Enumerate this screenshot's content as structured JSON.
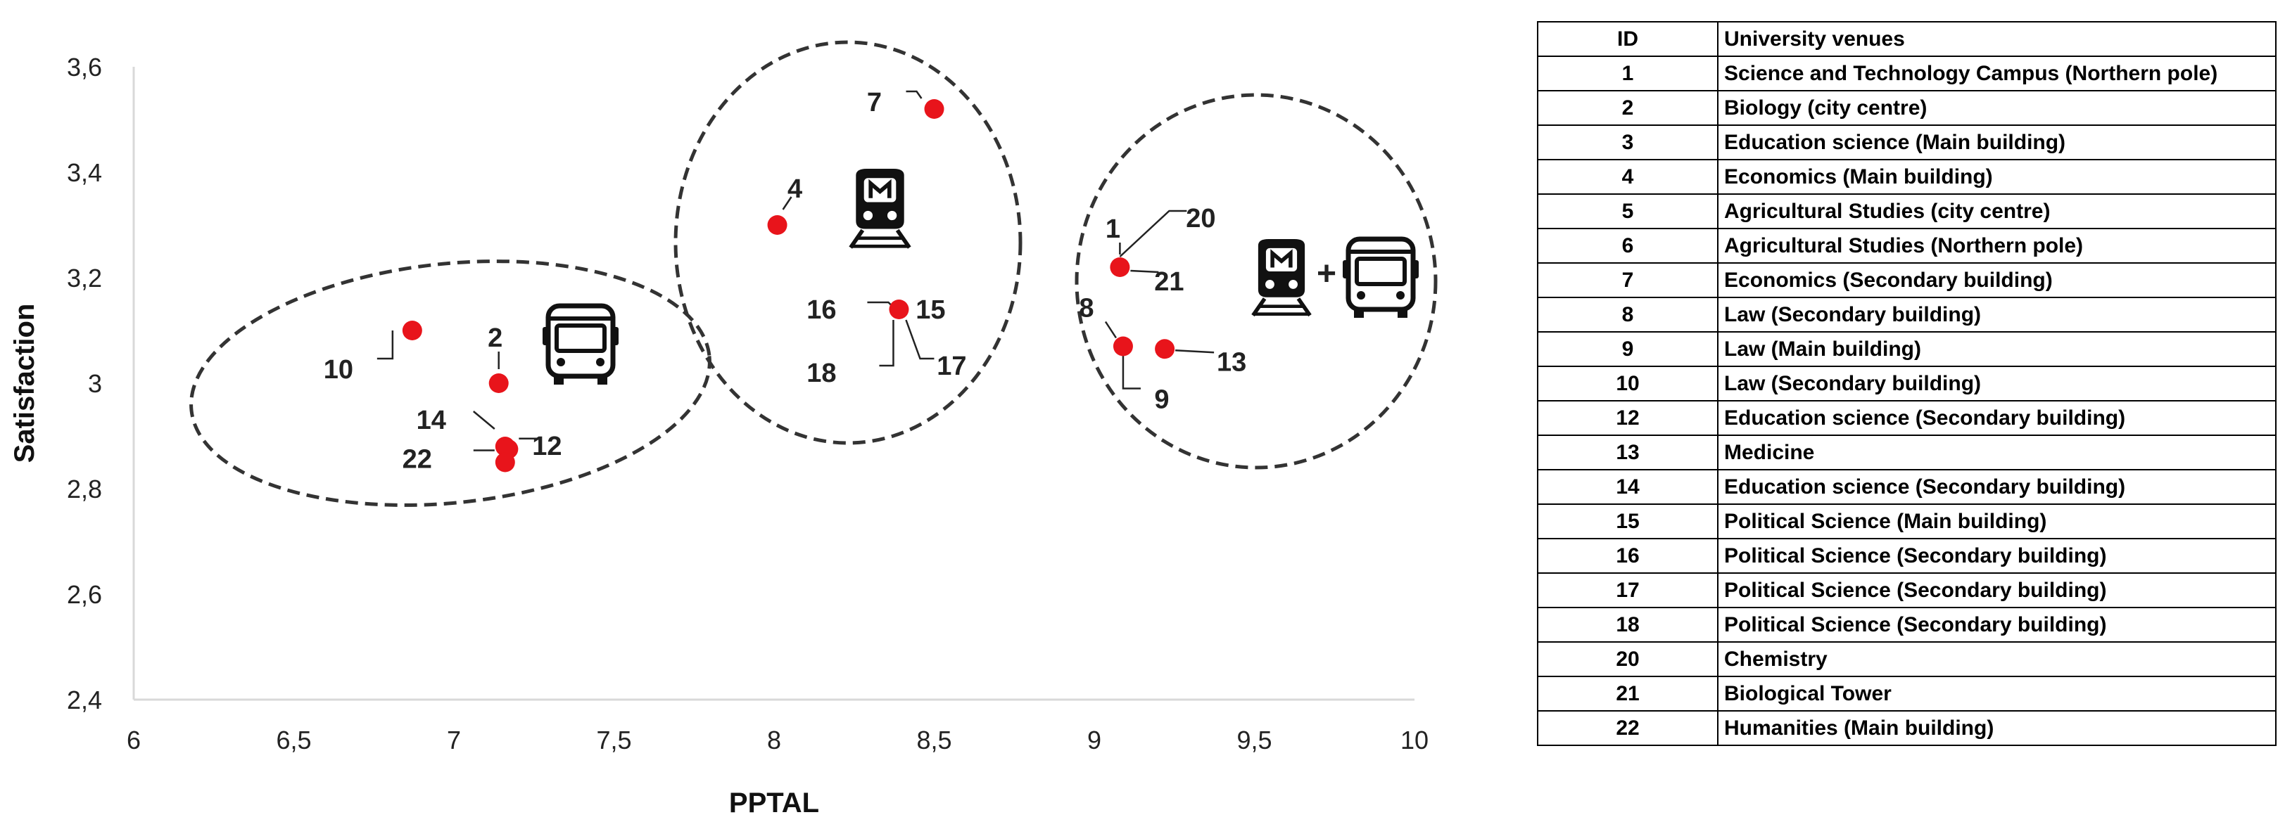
{
  "chart_data": {
    "type": "scatter",
    "xlabel": "PPTAL",
    "ylabel": "Satisfaction",
    "xlim": [
      6,
      10
    ],
    "ylim": [
      2.4,
      3.6
    ],
    "x_ticks": [
      "6",
      "6,5",
      "7",
      "7,5",
      "8",
      "8,5",
      "9",
      "9,5",
      "10"
    ],
    "y_ticks": [
      "2,4",
      "2,6",
      "2,8",
      "3",
      "3,2",
      "3,4",
      "3,6"
    ],
    "grid": false,
    "marker_color": "#e8141b",
    "points": [
      {
        "id": "10",
        "x": 6.87,
        "y": 3.1
      },
      {
        "id": "2",
        "x": 7.14,
        "y": 3.0
      },
      {
        "id": "14",
        "x": 7.16,
        "y": 2.88
      },
      {
        "id": "12",
        "x": 7.17,
        "y": 2.875
      },
      {
        "id": "22",
        "x": 7.16,
        "y": 2.85
      },
      {
        "id": "4",
        "x": 8.01,
        "y": 3.3
      },
      {
        "id": "7",
        "x": 8.5,
        "y": 3.52
      },
      {
        "id": "16",
        "x": 8.39,
        "y": 3.14
      },
      {
        "id": "15",
        "x": 8.39,
        "y": 3.14
      },
      {
        "id": "18",
        "x": 8.39,
        "y": 3.14
      },
      {
        "id": "17",
        "x": 8.39,
        "y": 3.14
      },
      {
        "id": "1",
        "x": 9.08,
        "y": 3.22
      },
      {
        "id": "20",
        "x": 9.08,
        "y": 3.22
      },
      {
        "id": "21",
        "x": 9.08,
        "y": 3.22
      },
      {
        "id": "8",
        "x": 9.09,
        "y": 3.07
      },
      {
        "id": "9",
        "x": 9.09,
        "y": 3.07
      },
      {
        "id": "13",
        "x": 9.22,
        "y": 3.065
      }
    ],
    "groups": [
      {
        "mode": "bus-icon"
      },
      {
        "mode": "metro-icon"
      },
      {
        "mode": "metro-and-bus-icon",
        "joiner": "+"
      }
    ]
  },
  "table": {
    "headers": [
      "ID",
      "University venues"
    ],
    "rows": [
      [
        "1",
        "Science and Technology Campus (Northern pole)"
      ],
      [
        "2",
        "Biology (city centre)"
      ],
      [
        "3",
        "Education science (Main building)"
      ],
      [
        "4",
        "Economics (Main building)"
      ],
      [
        "5",
        "Agricultural Studies (city centre)"
      ],
      [
        "6",
        "Agricultural Studies (Northern pole)"
      ],
      [
        "7",
        "Economics (Secondary building)"
      ],
      [
        "8",
        "Law (Secondary building)"
      ],
      [
        "9",
        "Law (Main building)"
      ],
      [
        "10",
        "Law (Secondary building)"
      ],
      [
        "12",
        "Education science (Secondary building)"
      ],
      [
        "13",
        "Medicine"
      ],
      [
        "14",
        "Education science (Secondary building)"
      ],
      [
        "15",
        "Political Science (Main building)"
      ],
      [
        "16",
        "Political Science (Secondary building)"
      ],
      [
        "17",
        "Political Science (Secondary building)"
      ],
      [
        "18",
        "Political Science (Secondary building)"
      ],
      [
        "20",
        "Chemistry"
      ],
      [
        "21",
        "Biological Tower"
      ],
      [
        "22",
        "Humanities (Main building)"
      ]
    ]
  }
}
